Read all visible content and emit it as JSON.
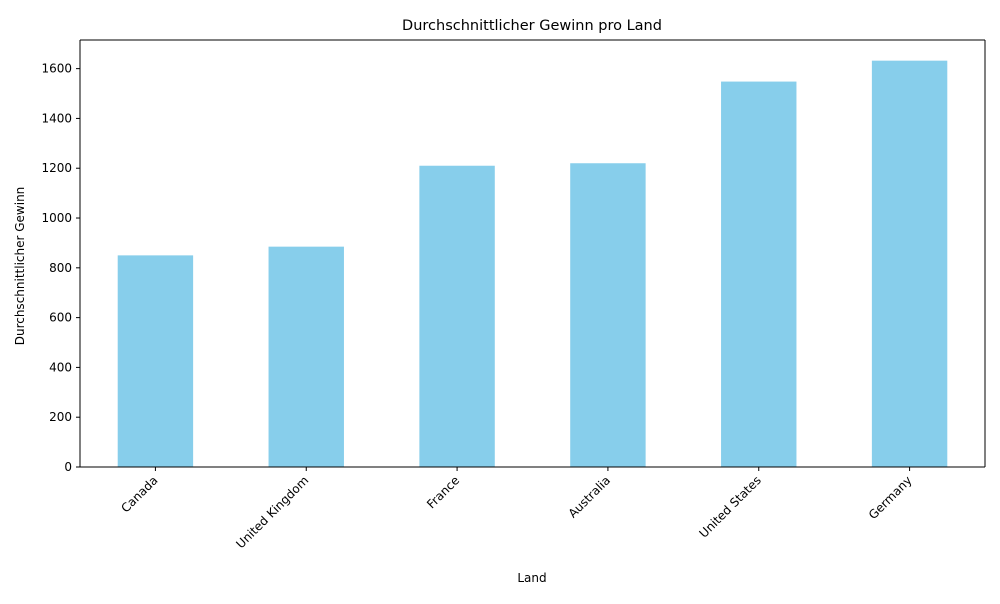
{
  "chart_data": {
    "type": "bar",
    "title": "Durchschnittlicher Gewinn pro Land",
    "xlabel": "Land",
    "ylabel": "Durchschnittlicher Gewinn",
    "categories": [
      "Canada",
      "United Kingdom",
      "France",
      "Australia",
      "United States",
      "Germany"
    ],
    "values": [
      850,
      885,
      1210,
      1220,
      1548,
      1632
    ],
    "ylim": [
      0,
      1715
    ],
    "yticks": [
      0,
      200,
      400,
      600,
      800,
      1000,
      1200,
      1400,
      1600
    ],
    "bar_color": "#87ceeb",
    "grid": false,
    "legend": "none"
  }
}
